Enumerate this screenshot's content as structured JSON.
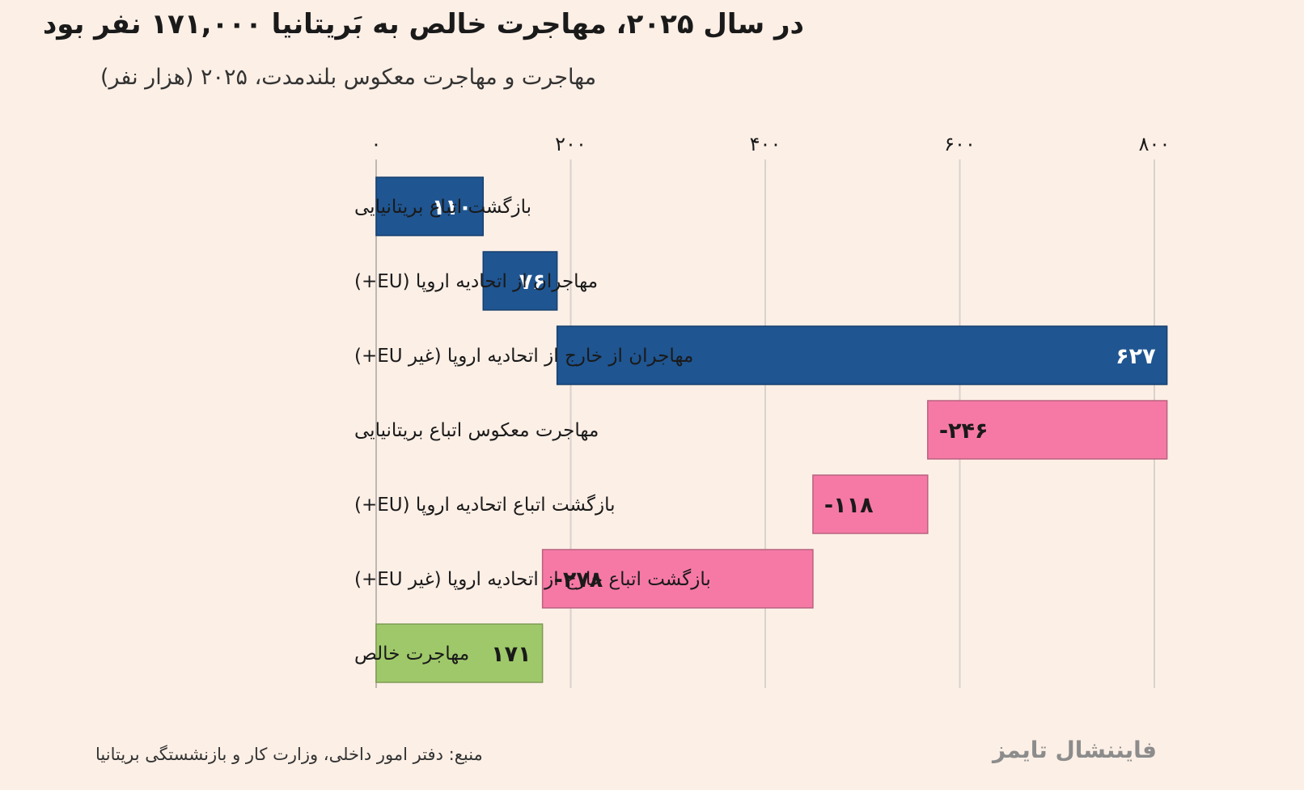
{
  "title": "در سال ۲۰۲۵، مهاجرت خالص به بَریتانیا ۱۷۱,۰۰۰ نفر بود",
  "subtitle": "مهاجرت و مهاجرت معکوس بلندمدت، ۲۰۲۵ (هزار نفر)",
  "source": "منبع: دفتر امور داخلی، وزارت کار و بازنشستگی بریتانیا",
  "brand": "فایننشال تایمز",
  "chart_data": {
    "type": "bar",
    "subtype": "waterfall-horizontal",
    "xlim": [
      0,
      800
    ],
    "ticks": [
      0,
      200,
      400,
      600,
      800
    ],
    "tick_labels": [
      "۰",
      "۲۰۰",
      "۴۰۰",
      "۶۰۰",
      "۸۰۰"
    ],
    "grid": true,
    "colors": {
      "inflow": "#1f5591",
      "outflow": "#f679a5",
      "net": "#9fc86a"
    },
    "categories": [
      "بازگشت اتباع بریتانیایی",
      "مهاجران از اتحادیه اروپا (EU+)",
      "مهاجران از خارج از اتحادیه اروپا (غیر EU+)",
      "مهاجرت معکوس اتباع بریتانیایی",
      "بازگشت اتباع اتحادیه اروپا (EU+)",
      "بازگشت اتباع خارج از اتحادیه اروپا (غیر EU+)",
      "مهاجرت خالص"
    ],
    "values": [
      110,
      76,
      627,
      -246,
      -118,
      -278,
      171
    ],
    "value_labels": [
      "۱۱۰",
      "۷۶",
      "۶۲۷",
      "-۲۴۶",
      "-۱۱۸",
      "-۲۷۸",
      "۱۷۱"
    ],
    "kinds": [
      "inflow",
      "inflow",
      "inflow",
      "outflow",
      "outflow",
      "outflow",
      "net"
    ]
  }
}
